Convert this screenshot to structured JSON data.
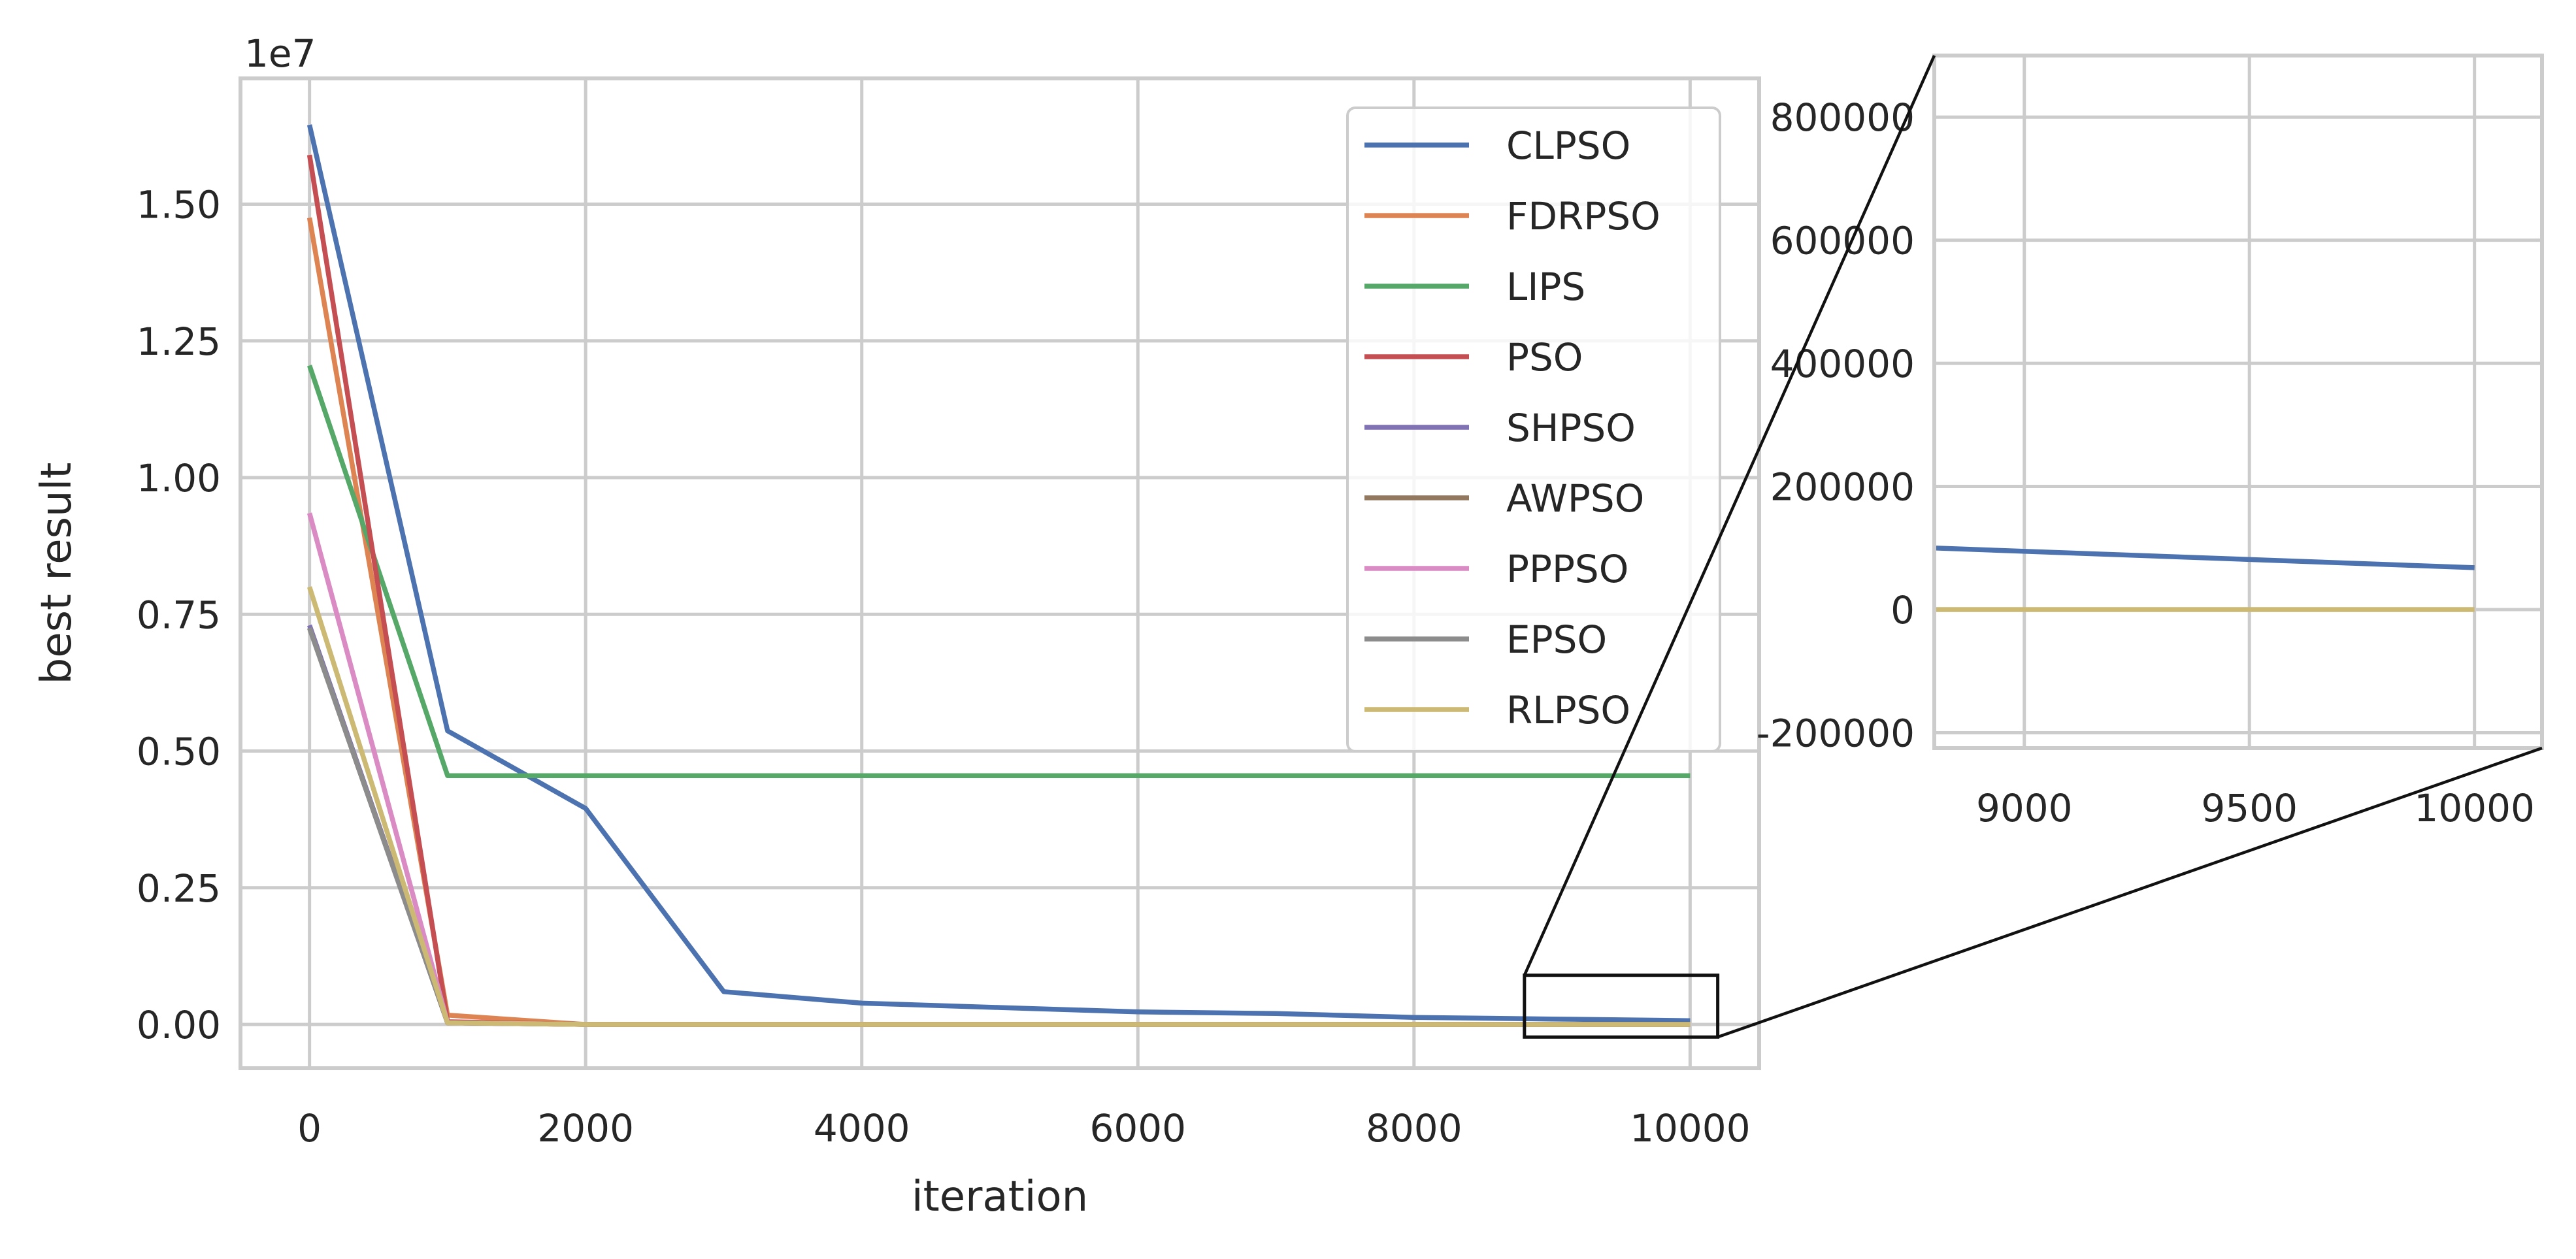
{
  "chart_data": [
    {
      "type": "line",
      "title": "",
      "xlabel": "iteration",
      "ylabel": "best result",
      "offset_text": "1e7",
      "xlim": [
        -500,
        10500
      ],
      "ylim": [
        -0.08,
        1.73
      ],
      "xticks": [
        0,
        2000,
        4000,
        6000,
        8000,
        10000
      ],
      "xtick_labels": [
        "0",
        "2000",
        "4000",
        "6000",
        "8000",
        "10000"
      ],
      "yticks": [
        0,
        0.25,
        0.5,
        0.75,
        1.0,
        1.25,
        1.5
      ],
      "ytick_labels": [
        "0.00",
        "0.25",
        "0.50",
        "0.75",
        "1.00",
        "1.25",
        "1.50"
      ],
      "grid": true,
      "legend_position": "top-right",
      "x": [
        0,
        1000,
        2000,
        3000,
        4000,
        5000,
        6000,
        7000,
        8000,
        9000,
        10000
      ],
      "series": [
        {
          "name": "CLPSO",
          "color": "#4c72b0",
          "values": [
            1.645,
            0.537,
            0.395,
            0.06,
            0.039,
            0.031,
            0.023,
            0.02,
            0.013,
            0.01,
            0.007
          ]
        },
        {
          "name": "FDRPSO",
          "color": "#dd8452",
          "values": [
            1.475,
            0.017,
            0,
            0,
            0,
            0,
            0,
            0,
            0,
            0,
            0
          ]
        },
        {
          "name": "LIPS",
          "color": "#55a868",
          "values": [
            1.205,
            0.455,
            0.455,
            0.455,
            0.455,
            0.455,
            0.455,
            0.455,
            0.455,
            0.455,
            0.455
          ]
        },
        {
          "name": "PSO",
          "color": "#c44e52",
          "values": [
            1.59,
            0.005,
            0,
            0,
            0,
            0,
            0,
            0,
            0,
            0,
            0
          ]
        },
        {
          "name": "SHPSO",
          "color": "#8172b3",
          "values": [
            0.73,
            0.003,
            0,
            0,
            0,
            0,
            0,
            0,
            0,
            0,
            0
          ]
        },
        {
          "name": "AWPSO",
          "color": "#937860",
          "values": [
            0.725,
            0.003,
            0,
            0,
            0,
            0,
            0,
            0,
            0,
            0,
            0
          ]
        },
        {
          "name": "PPPSO",
          "color": "#da8bc3",
          "values": [
            0.935,
            0.003,
            0,
            0,
            0,
            0,
            0,
            0,
            0,
            0,
            0
          ]
        },
        {
          "name": "EPSO",
          "color": "#8c8c8c",
          "values": [
            0.725,
            0.003,
            0,
            0,
            0,
            0,
            0,
            0,
            0,
            0,
            0
          ]
        },
        {
          "name": "RLPSO",
          "color": "#ccb974",
          "values": [
            0.8,
            0.003,
            0,
            0,
            0,
            0,
            0,
            0,
            0,
            0,
            0
          ]
        }
      ],
      "zoom_region": {
        "x": [
          8800,
          10200
        ],
        "y": [
          -0.023,
          0.09
        ]
      }
    },
    {
      "type": "line",
      "title": "",
      "xlabel": "",
      "ylabel": "",
      "xlim": [
        8800,
        10150
      ],
      "ylim": [
        -225000,
        900000
      ],
      "xticks": [
        9000,
        9500,
        10000
      ],
      "xtick_labels": [
        "9000",
        "9500",
        "10000"
      ],
      "yticks": [
        -200000,
        0,
        200000,
        400000,
        600000,
        800000
      ],
      "ytick_labels": [
        "-200000",
        "0",
        "200000",
        "400000",
        "600000",
        "800000"
      ],
      "grid": true,
      "x": [
        8800,
        10000
      ],
      "series": [
        {
          "color": "#4c72b0",
          "values": [
            100000,
            68000
          ]
        },
        {
          "color": "#ccb974",
          "values": [
            0,
            0
          ]
        }
      ]
    }
  ]
}
